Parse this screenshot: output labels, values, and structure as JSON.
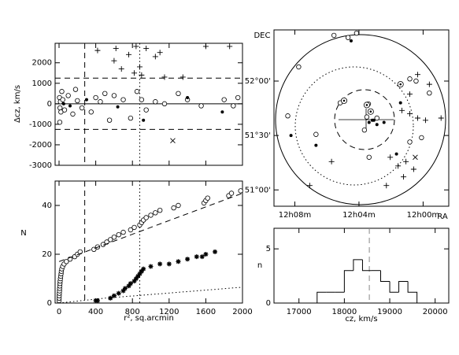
{
  "chart_data": [
    {
      "type": "scatter",
      "ylabel": "Δcz, km/s",
      "xlim": [
        -43,
        2000
      ],
      "xticks": [
        0,
        400,
        800,
        1200,
        1600,
        2000
      ],
      "show_xtick_labels": false,
      "ylim": [
        -3000,
        2950
      ],
      "yticks": [
        -3000,
        -2000,
        -1000,
        0,
        1000,
        2000
      ],
      "hlines": [
        {
          "value": 1250,
          "style": "dashed"
        },
        {
          "value": -1250,
          "style": "dashed"
        },
        {
          "value": 0,
          "style": "solid"
        }
      ],
      "vlines": [
        {
          "value": 280,
          "style": "dashed"
        },
        {
          "value": 880,
          "style": "dotted"
        }
      ],
      "series": [
        {
          "marker": "circle",
          "color": "#000000",
          "x": [
            5,
            10,
            15,
            20,
            30,
            8,
            40,
            60,
            100,
            150,
            180,
            200,
            250,
            350,
            400,
            450,
            500,
            550,
            600,
            700,
            780,
            850,
            900,
            950,
            1050,
            1150,
            1300,
            1400,
            1550,
            1800,
            1900,
            1950
          ],
          "values": [
            300,
            -200,
            100,
            -400,
            600,
            -900,
            200,
            -300,
            400,
            -500,
            700,
            150,
            -200,
            -400,
            300,
            100,
            500,
            -800,
            400,
            200,
            -700,
            600,
            200,
            -300,
            100,
            0,
            500,
            200,
            -100,
            200,
            -100,
            300
          ]
        },
        {
          "marker": "dot",
          "color": "#000000",
          "x": [
            50,
            120,
            300,
            640,
            920,
            1400,
            1780
          ],
          "values": [
            0,
            -100,
            200,
            -150,
            -800,
            300,
            -400
          ]
        },
        {
          "marker": "plus",
          "color": "#000000",
          "x": [
            420,
            600,
            680,
            760,
            820,
            880,
            900,
            950,
            1050,
            1100,
            1150,
            1350,
            1600,
            1860,
            620,
            840
          ],
          "values": [
            2600,
            2100,
            1700,
            2400,
            1500,
            1800,
            1400,
            2700,
            2300,
            2500,
            1300,
            1300,
            2800,
            2800,
            2700,
            2800
          ]
        },
        {
          "marker": "cross",
          "color": "#000000",
          "x": [
            1240
          ],
          "values": [
            -1800
          ]
        }
      ]
    },
    {
      "type": "scatter",
      "xlabel": "r², sq.arcmin",
      "ylabel": "N",
      "xlim": [
        -43,
        2000
      ],
      "xticks": [
        0,
        400,
        800,
        1200,
        1600,
        2000
      ],
      "ylim": [
        0,
        50
      ],
      "yticks": [
        0,
        20,
        40
      ],
      "vlines": [
        {
          "value": 280,
          "style": "dashed"
        },
        {
          "value": 880,
          "style": "dotted"
        }
      ],
      "series": [
        {
          "marker": "circle",
          "color": "#000000",
          "x": [
            0,
            1,
            2,
            3,
            5,
            6,
            8,
            10,
            12,
            15,
            18,
            22,
            25,
            30,
            40,
            55,
            80,
            120,
            170,
            200,
            230,
            380,
            420,
            480,
            520,
            560,
            600,
            650,
            700,
            780,
            820,
            880,
            900,
            920,
            950,
            1000,
            1050,
            1100,
            1250,
            1300,
            1580,
            1600,
            1620,
            1850,
            1880,
            1980
          ],
          "values": [
            1,
            2,
            3,
            4,
            5,
            6,
            7,
            8,
            9,
            10,
            11,
            12,
            13,
            14,
            15,
            16,
            17,
            18,
            19,
            20,
            21,
            22,
            23,
            24,
            25,
            26,
            27,
            28,
            29,
            30,
            31,
            32,
            33,
            34,
            35,
            36,
            37,
            38,
            39,
            40,
            41,
            42,
            43,
            44,
            45,
            46
          ]
        },
        {
          "marker": "asterisk",
          "color": "#000000",
          "x": [
            400,
            420,
            560,
            600,
            650,
            700,
            720,
            760,
            780,
            820,
            840,
            860,
            880,
            900,
            920,
            1000,
            1100,
            1200,
            1300,
            1400,
            1500,
            1560,
            1600,
            1700
          ],
          "values": [
            1,
            1,
            2,
            3,
            4,
            5,
            6,
            7,
            8,
            9,
            10,
            11,
            12,
            13,
            14,
            15,
            16,
            16,
            17,
            18,
            19,
            19,
            20,
            21
          ]
        },
        {
          "line": "dashed",
          "color": "#000000",
          "x": [
            0,
            2000
          ],
          "values": [
            17,
            45
          ]
        },
        {
          "line": "dotted",
          "color": "#000000",
          "x": [
            0,
            250,
            500,
            1000,
            1500,
            2000
          ],
          "values": [
            0,
            1,
            2,
            3.5,
            5,
            6.5
          ]
        }
      ]
    },
    {
      "type": "scatter",
      "xlabel": "RA",
      "ylabel": "DEC",
      "xlim": [
        9.3,
        -1.6
      ],
      "xticks": [
        {
          "value": 8,
          "label": "12h08m"
        },
        {
          "value": 4,
          "label": "12h04m"
        },
        {
          "value": 0,
          "label": "12h00m"
        }
      ],
      "ylim": [
        50.85,
        52.47
      ],
      "yticks": [
        {
          "value": 51,
          "label": "51°00'"
        },
        {
          "value": 51.5,
          "label": "51°30'"
        },
        {
          "value": 52,
          "label": "52°00'"
        }
      ],
      "series": [
        {
          "marker": "circle",
          "color": "#000000",
          "x": [
            5.56,
            4.68,
            4.15,
            7.76,
            0.83,
            5.17,
            3.41,
            3.51,
            2.88,
            6.68,
            3.37,
            3.66,
            0.44,
            -0.39,
            0.83,
            0.1,
            8.44
          ],
          "values": [
            52.42,
            52.4,
            52.44,
            52.13,
            52.02,
            51.8,
            51.79,
            51.67,
            51.66,
            51.51,
            51.3,
            51.55,
            52.0,
            51.89,
            51.44,
            51.48,
            51.68
          ]
        },
        {
          "marker": "dot",
          "color": "#000000",
          "x": [
            3.17,
            3.37,
            3.07,
            2.88,
            2.44,
            6.68,
            1.66,
            1.41,
            8.24,
            4.49
          ],
          "values": [
            51.64,
            51.62,
            51.64,
            51.6,
            51.62,
            51.41,
            51.33,
            51.8,
            51.5,
            52.37
          ]
        },
        {
          "marker": "circled-dot",
          "color": "#000000",
          "x": [
            4.93,
            3.51,
            1.41,
            3.27
          ],
          "values": [
            51.82,
            51.78,
            51.97,
            51.72
          ]
        },
        {
          "marker": "plus",
          "color": "#000000",
          "x": [
            0.34,
            -0.39,
            1.32,
            0.83,
            0.34,
            -0.15,
            -1.12,
            2.05,
            1.56,
            1.07,
            0.59,
            1.22,
            2.29,
            7.07,
            5.71,
            0.83
          ],
          "values": [
            52.06,
            51.97,
            51.73,
            51.7,
            51.66,
            51.64,
            51.66,
            51.3,
            51.22,
            51.26,
            51.19,
            51.12,
            51.04,
            51.04,
            51.26,
            51.88
          ]
        },
        {
          "marker": "cross",
          "color": "#000000",
          "x": [
            0.49
          ],
          "values": [
            51.3
          ]
        }
      ]
    },
    {
      "type": "histogram",
      "xlabel": "cz, km/s",
      "ylabel": "n",
      "color": "#000000",
      "xlim": [
        16450,
        20300
      ],
      "xticks": [
        17000,
        18000,
        19000,
        20000
      ],
      "ylim": [
        0,
        6.9
      ],
      "yticks": [
        0,
        5
      ],
      "bins": [
        17400,
        17600,
        17800,
        18000,
        18200,
        18400,
        18600,
        18800,
        19000,
        19200,
        19400,
        19600
      ],
      "values": [
        1,
        1,
        1,
        3,
        4,
        3,
        3,
        2,
        1,
        2,
        1
      ],
      "vlines": [
        {
          "value": 18550,
          "style": "dashed",
          "color": "#888888"
        }
      ]
    }
  ]
}
